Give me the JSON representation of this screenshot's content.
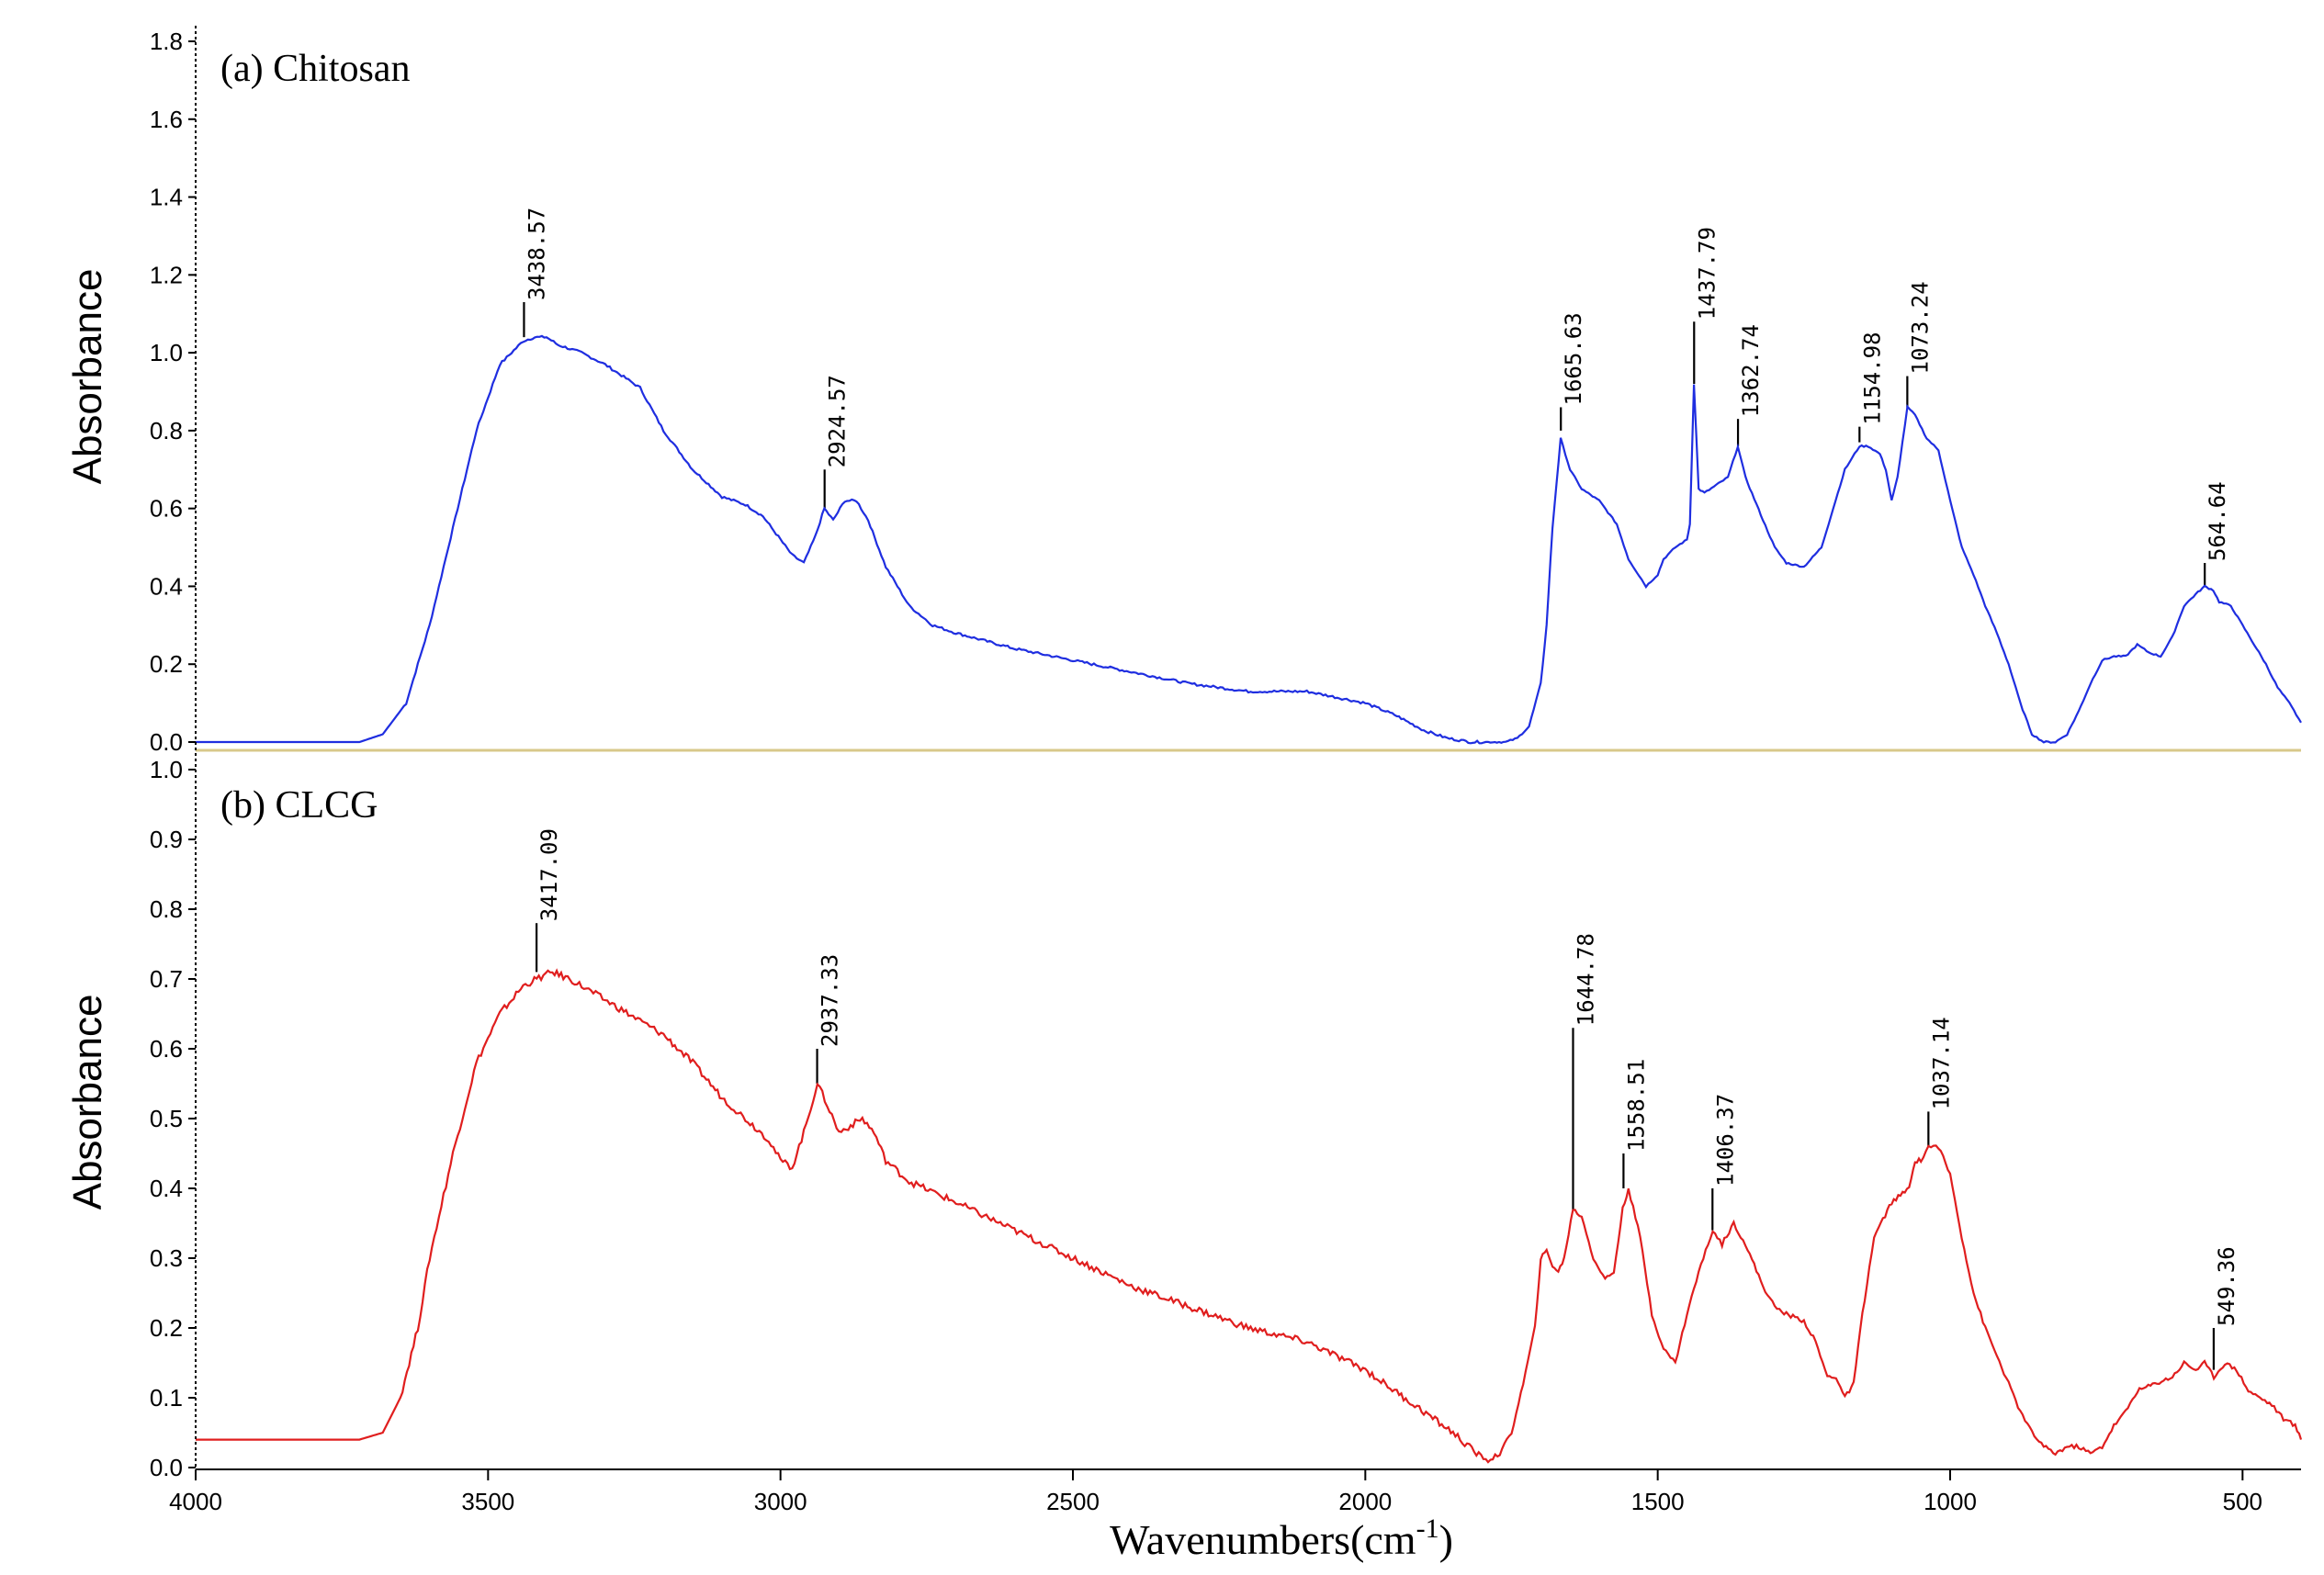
{
  "figure": {
    "xlabel": "Wavenumbers(cm",
    "xlabel_sup": "-1",
    "xlabel_close": ")"
  },
  "colors": {
    "chitosan": "#1f2ee0",
    "clcg": "#e01e1e",
    "axis": "#000000",
    "baseline": "#d8c88a"
  },
  "chart_data": [
    {
      "type": "line",
      "title": "(a) Chitosan",
      "ylabel": "Absorbance",
      "xlim": [
        4000,
        400
      ],
      "ylim": [
        0.0,
        1.8
      ],
      "yticks": [
        0.0,
        0.2,
        0.4,
        0.6,
        0.8,
        1.0,
        1.2,
        1.4,
        1.6,
        1.8
      ],
      "yticklabels": [
        "0.0",
        "0.2",
        "0.4",
        "0.6",
        "0.8",
        "1.0",
        "1.2",
        "1.4",
        "1.6",
        "1.8"
      ],
      "series": [
        {
          "name": "Chitosan",
          "x": [
            4000,
            3800,
            3720,
            3680,
            3640,
            3600,
            3560,
            3520,
            3480,
            3440,
            3420,
            3400,
            3380,
            3340,
            3300,
            3260,
            3240,
            3200,
            3150,
            3100,
            3060,
            3030,
            3000,
            2980,
            2960,
            2940,
            2925,
            2910,
            2890,
            2870,
            2850,
            2820,
            2780,
            2740,
            2700,
            2650,
            2600,
            2500,
            2400,
            2300,
            2200,
            2100,
            2000,
            1950,
            1900,
            1860,
            1820,
            1790,
            1760,
            1740,
            1720,
            1700,
            1690,
            1680,
            1666,
            1650,
            1630,
            1600,
            1570,
            1550,
            1520,
            1500,
            1490,
            1470,
            1450,
            1445,
            1438,
            1430,
            1420,
            1400,
            1380,
            1363,
            1350,
            1320,
            1300,
            1280,
            1250,
            1220,
            1200,
            1180,
            1155,
            1140,
            1120,
            1110,
            1100,
            1090,
            1073,
            1060,
            1040,
            1020,
            1000,
            980,
            960,
            940,
            920,
            900,
            880,
            860,
            840,
            820,
            800,
            780,
            760,
            740,
            720,
            700,
            680,
            660,
            640,
            620,
            600,
            580,
            565,
            550,
            540,
            520,
            500,
            480,
            460,
            440,
            420,
            400
          ],
          "y": [
            0.0,
            0.0,
            0.0,
            0.02,
            0.1,
            0.3,
            0.55,
            0.8,
            0.97,
            1.03,
            1.04,
            1.04,
            1.02,
            1.0,
            0.97,
            0.93,
            0.91,
            0.8,
            0.7,
            0.63,
            0.61,
            0.58,
            0.52,
            0.48,
            0.46,
            0.53,
            0.6,
            0.57,
            0.62,
            0.62,
            0.57,
            0.45,
            0.35,
            0.3,
            0.28,
            0.26,
            0.24,
            0.21,
            0.18,
            0.15,
            0.13,
            0.13,
            0.1,
            0.07,
            0.03,
            0.01,
            0.0,
            0.0,
            0.0,
            0.01,
            0.04,
            0.15,
            0.3,
            0.55,
            0.78,
            0.7,
            0.65,
            0.62,
            0.56,
            0.47,
            0.4,
            0.43,
            0.47,
            0.5,
            0.52,
            0.56,
            0.92,
            0.65,
            0.64,
            0.66,
            0.68,
            0.76,
            0.68,
            0.57,
            0.5,
            0.46,
            0.45,
            0.5,
            0.6,
            0.7,
            0.76,
            0.76,
            0.74,
            0.7,
            0.62,
            0.68,
            0.86,
            0.84,
            0.78,
            0.75,
            0.62,
            0.5,
            0.43,
            0.35,
            0.28,
            0.2,
            0.1,
            0.02,
            0.0,
            0.0,
            0.02,
            0.08,
            0.15,
            0.21,
            0.22,
            0.22,
            0.25,
            0.23,
            0.22,
            0.27,
            0.35,
            0.38,
            0.4,
            0.39,
            0.36,
            0.35,
            0.3,
            0.25,
            0.2,
            0.14,
            0.1,
            0.05
          ]
        }
      ],
      "annotations": [
        {
          "x": 3438.57,
          "y": 1.04,
          "label": "3438.57",
          "top": 1.13
        },
        {
          "x": 2924.57,
          "y": 0.6,
          "label": "2924.57",
          "top": 0.7
        },
        {
          "x": 1665.63,
          "y": 0.8,
          "label": "1665.63",
          "top": 0.86
        },
        {
          "x": 1437.79,
          "y": 0.92,
          "label": "1437.79",
          "top": 1.08
        },
        {
          "x": 1362.74,
          "y": 0.76,
          "label": "1362.74",
          "top": 0.83
        },
        {
          "x": 1154.98,
          "y": 0.77,
          "label": "1154.98",
          "top": 0.81
        },
        {
          "x": 1073.24,
          "y": 0.86,
          "label": "1073.24",
          "top": 0.94
        },
        {
          "x": 564.64,
          "y": 0.4,
          "label": "564.64",
          "top": 0.46
        }
      ]
    },
    {
      "type": "line",
      "title": "(b) CLCG",
      "ylabel": "Absorbance",
      "xlabel": "Wavenumbers(cm-1)",
      "xlim": [
        4000,
        400
      ],
      "ylim": [
        0.0,
        1.0
      ],
      "yticks": [
        0.0,
        0.1,
        0.2,
        0.3,
        0.4,
        0.5,
        0.6,
        0.7,
        0.8,
        0.9,
        1.0
      ],
      "yticklabels": [
        "0.0",
        "0.1",
        "0.2",
        "0.3",
        "0.4",
        "0.5",
        "0.6",
        "0.7",
        "0.8",
        "0.9",
        "1.0"
      ],
      "xticks": [
        4000,
        3500,
        3000,
        2500,
        2000,
        1500,
        1000,
        500
      ],
      "xticklabels": [
        "4000",
        "3500",
        "3000",
        "2500",
        "2000",
        "1500",
        "1000",
        "500"
      ],
      "series": [
        {
          "name": "CLCG",
          "x": [
            4000,
            3900,
            3800,
            3720,
            3680,
            3650,
            3620,
            3600,
            3560,
            3520,
            3480,
            3440,
            3417,
            3390,
            3360,
            3320,
            3280,
            3240,
            3200,
            3150,
            3100,
            3060,
            3020,
            3000,
            2980,
            2960,
            2937,
            2920,
            2900,
            2880,
            2860,
            2840,
            2820,
            2780,
            2700,
            2600,
            2500,
            2400,
            2300,
            2200,
            2100,
            2000,
            1950,
            1900,
            1850,
            1810,
            1790,
            1770,
            1750,
            1730,
            1710,
            1700,
            1690,
            1680,
            1670,
            1660,
            1645,
            1630,
            1610,
            1590,
            1575,
            1560,
            1550,
            1530,
            1510,
            1490,
            1470,
            1450,
            1430,
            1406,
            1390,
            1370,
            1350,
            1320,
            1300,
            1280,
            1250,
            1230,
            1210,
            1195,
            1180,
            1165,
            1150,
            1130,
            1100,
            1070,
            1060,
            1050,
            1037,
            1020,
            1000,
            980,
            960,
            940,
            920,
            900,
            880,
            860,
            840,
            820,
            800,
            780,
            760,
            740,
            720,
            700,
            680,
            650,
            620,
            600,
            580,
            565,
            549,
            530,
            510,
            490,
            470,
            450,
            430,
            410,
            400
          ],
          "y": [
            0.04,
            0.04,
            0.04,
            0.04,
            0.05,
            0.1,
            0.2,
            0.3,
            0.45,
            0.58,
            0.65,
            0.69,
            0.7,
            0.71,
            0.7,
            0.68,
            0.66,
            0.64,
            0.62,
            0.58,
            0.53,
            0.5,
            0.47,
            0.44,
            0.43,
            0.48,
            0.55,
            0.52,
            0.48,
            0.49,
            0.5,
            0.48,
            0.44,
            0.41,
            0.38,
            0.34,
            0.3,
            0.26,
            0.23,
            0.2,
            0.18,
            0.14,
            0.11,
            0.08,
            0.05,
            0.02,
            0.01,
            0.02,
            0.05,
            0.12,
            0.2,
            0.3,
            0.31,
            0.29,
            0.28,
            0.3,
            0.37,
            0.36,
            0.3,
            0.27,
            0.28,
            0.37,
            0.4,
            0.33,
            0.22,
            0.17,
            0.15,
            0.22,
            0.28,
            0.34,
            0.32,
            0.35,
            0.32,
            0.26,
            0.23,
            0.22,
            0.21,
            0.18,
            0.13,
            0.13,
            0.1,
            0.12,
            0.22,
            0.33,
            0.38,
            0.4,
            0.44,
            0.44,
            0.46,
            0.46,
            0.42,
            0.33,
            0.25,
            0.2,
            0.16,
            0.12,
            0.08,
            0.05,
            0.03,
            0.02,
            0.03,
            0.03,
            0.02,
            0.03,
            0.06,
            0.08,
            0.11,
            0.12,
            0.13,
            0.15,
            0.14,
            0.15,
            0.13,
            0.15,
            0.14,
            0.11,
            0.1,
            0.09,
            0.07,
            0.06,
            0.04
          ]
        }
      ],
      "annotations": [
        {
          "x": 3417.09,
          "y": 0.71,
          "label": "3417.09",
          "top": 0.78
        },
        {
          "x": 2937.33,
          "y": 0.55,
          "label": "2937.33",
          "top": 0.6
        },
        {
          "x": 1644.78,
          "y": 0.37,
          "label": "1644.78",
          "top": 0.63
        },
        {
          "x": 1558.51,
          "y": 0.4,
          "label": "1558.51",
          "top": 0.45
        },
        {
          "x": 1406.37,
          "y": 0.34,
          "label": "1406.37",
          "top": 0.4
        },
        {
          "x": 1037.14,
          "y": 0.46,
          "label": "1037.14",
          "top": 0.51
        },
        {
          "x": 549.36,
          "y": 0.14,
          "label": "549.36",
          "top": 0.2
        }
      ]
    }
  ]
}
